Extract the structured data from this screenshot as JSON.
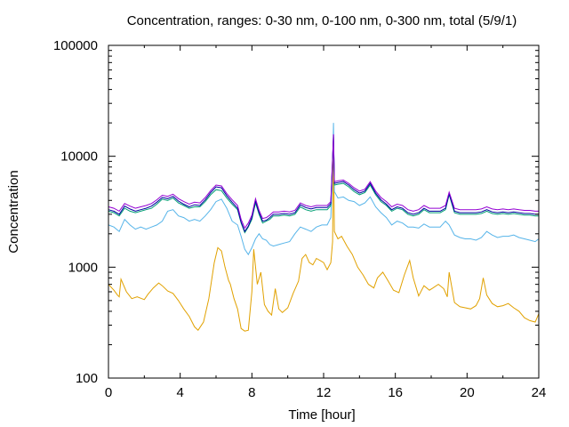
{
  "chart_data": {
    "type": "line",
    "title": "Concentration, ranges: 0-30 nm, 0-100 nm, 0-300 nm, total (5/9/1)",
    "xlabel": "Time [hour]",
    "ylabel": "Concentration",
    "x_scale": "linear",
    "y_scale": "log",
    "xlim": [
      0,
      24
    ],
    "ylim": [
      100,
      100000
    ],
    "x_ticks": [
      0,
      4,
      8,
      12,
      16,
      20,
      24
    ],
    "y_ticks": [
      100,
      1000,
      10000,
      100000
    ],
    "x_tick_labels": [
      "0",
      "4",
      "8",
      "12",
      "16",
      "20",
      "24"
    ],
    "y_tick_labels": [
      "100",
      "1000",
      "10000",
      "100000"
    ],
    "grid": false,
    "legend": false,
    "series": [
      {
        "color": "#e1a100",
        "x": [
          0.0,
          0.3,
          0.5,
          0.6,
          0.7,
          1.0,
          1.3,
          1.6,
          2.0,
          2.2,
          2.5,
          2.8,
          3.0,
          3.3,
          3.6,
          3.9,
          4.2,
          4.5,
          4.8,
          5.0,
          5.3,
          5.6,
          5.9,
          6.1,
          6.3,
          6.5,
          6.7,
          6.8,
          7.0,
          7.2,
          7.4,
          7.6,
          7.8,
          8.0,
          8.1,
          8.3,
          8.5,
          8.7,
          8.9,
          9.1,
          9.3,
          9.5,
          9.7,
          10.0,
          10.3,
          10.6,
          10.8,
          11.0,
          11.2,
          11.4,
          11.6,
          11.8,
          12.0,
          12.2,
          12.4,
          12.5,
          12.55,
          12.6,
          12.8,
          13.0,
          13.3,
          13.6,
          13.9,
          14.2,
          14.5,
          14.8,
          15.0,
          15.3,
          15.6,
          15.9,
          16.2,
          16.5,
          16.8,
          17.0,
          17.3,
          17.6,
          17.9,
          18.1,
          18.4,
          18.7,
          18.9,
          19.0,
          19.3,
          19.6,
          19.9,
          20.2,
          20.5,
          20.7,
          20.9,
          21.1,
          21.4,
          21.7,
          22.0,
          22.3,
          22.6,
          22.9,
          23.2,
          23.5,
          23.8,
          24.0
        ],
        "y": [
          700,
          620,
          560,
          540,
          780,
          600,
          520,
          540,
          510,
          570,
          650,
          720,
          680,
          610,
          580,
          500,
          420,
          360,
          290,
          270,
          320,
          520,
          1100,
          1500,
          1400,
          1000,
          760,
          700,
          520,
          420,
          280,
          265,
          270,
          600,
          1450,
          700,
          900,
          460,
          400,
          370,
          640,
          420,
          390,
          430,
          580,
          750,
          1200,
          1300,
          1100,
          1050,
          1200,
          1150,
          1100,
          950,
          1100,
          1700,
          15000,
          2100,
          1800,
          1900,
          1550,
          1300,
          1000,
          850,
          700,
          650,
          800,
          900,
          750,
          620,
          590,
          850,
          1150,
          800,
          550,
          680,
          620,
          650,
          700,
          640,
          540,
          900,
          480,
          440,
          430,
          420,
          450,
          520,
          800,
          560,
          470,
          440,
          450,
          470,
          430,
          400,
          350,
          330,
          320,
          380
        ]
      },
      {
        "color": "#56b4e9",
        "x": [
          0.0,
          0.3,
          0.6,
          0.9,
          1.2,
          1.5,
          1.8,
          2.1,
          2.4,
          2.7,
          3.0,
          3.3,
          3.6,
          3.9,
          4.2,
          4.5,
          4.8,
          5.1,
          5.4,
          5.7,
          6.0,
          6.3,
          6.6,
          6.9,
          7.2,
          7.4,
          7.6,
          7.8,
          8.0,
          8.2,
          8.4,
          8.6,
          8.8,
          9.0,
          9.2,
          9.5,
          9.8,
          10.1,
          10.4,
          10.7,
          11.0,
          11.3,
          11.6,
          11.9,
          12.2,
          12.4,
          12.5,
          12.55,
          12.6,
          12.8,
          13.1,
          13.4,
          13.7,
          14.0,
          14.3,
          14.6,
          14.9,
          15.2,
          15.5,
          15.8,
          16.1,
          16.4,
          16.7,
          17.0,
          17.3,
          17.6,
          17.9,
          18.2,
          18.5,
          18.8,
          19.0,
          19.3,
          19.6,
          19.9,
          20.2,
          20.5,
          20.8,
          21.1,
          21.4,
          21.7,
          22.0,
          22.3,
          22.6,
          22.9,
          23.2,
          23.5,
          23.8,
          24.0
        ],
        "y": [
          2400,
          2300,
          2100,
          2700,
          2400,
          2200,
          2300,
          2200,
          2300,
          2400,
          2600,
          3200,
          3300,
          2900,
          2800,
          2600,
          2700,
          2600,
          2900,
          3300,
          3900,
          4100,
          3400,
          2600,
          2400,
          1900,
          1450,
          1300,
          1500,
          1800,
          2000,
          1800,
          1750,
          1600,
          1550,
          1600,
          1650,
          1700,
          2000,
          2300,
          2200,
          2100,
          2300,
          2400,
          2400,
          2800,
          8000,
          20000,
          4800,
          4200,
          4300,
          4000,
          3900,
          3600,
          3800,
          4300,
          3500,
          3100,
          2800,
          2400,
          2600,
          2500,
          2300,
          2300,
          2250,
          2450,
          2300,
          2300,
          2300,
          2600,
          2400,
          1950,
          1850,
          1800,
          1800,
          1750,
          1850,
          2100,
          1950,
          1850,
          1900,
          1900,
          1950,
          1850,
          1800,
          1750,
          1700,
          1800
        ]
      },
      {
        "color": "#009e73",
        "x": [
          0.0,
          0.3,
          0.6,
          0.9,
          1.2,
          1.5,
          1.8,
          2.1,
          2.4,
          2.7,
          3.0,
          3.3,
          3.6,
          3.9,
          4.2,
          4.5,
          4.8,
          5.1,
          5.4,
          5.7,
          6.0,
          6.3,
          6.6,
          6.9,
          7.2,
          7.4,
          7.6,
          7.8,
          8.0,
          8.2,
          8.4,
          8.6,
          8.8,
          9.0,
          9.2,
          9.5,
          9.8,
          10.1,
          10.4,
          10.7,
          11.0,
          11.3,
          11.6,
          11.9,
          12.2,
          12.4,
          12.5,
          12.55,
          12.6,
          12.8,
          13.1,
          13.4,
          13.7,
          14.0,
          14.3,
          14.6,
          14.9,
          15.2,
          15.5,
          15.8,
          16.1,
          16.4,
          16.7,
          17.0,
          17.3,
          17.6,
          17.9,
          18.2,
          18.5,
          18.8,
          19.0,
          19.3,
          19.6,
          19.9,
          20.2,
          20.5,
          20.8,
          21.1,
          21.4,
          21.7,
          22.0,
          22.3,
          22.6,
          22.9,
          23.2,
          23.5,
          23.8,
          24.0
        ],
        "y": [
          3200,
          3100,
          2900,
          3400,
          3200,
          3100,
          3200,
          3300,
          3400,
          3700,
          4100,
          4000,
          4200,
          3800,
          3600,
          3400,
          3500,
          3500,
          3900,
          4500,
          5000,
          4900,
          4200,
          3700,
          3300,
          2500,
          2050,
          2300,
          2700,
          3800,
          3000,
          2500,
          2600,
          2700,
          2900,
          2900,
          2950,
          2900,
          3000,
          3500,
          3300,
          3200,
          3300,
          3300,
          3300,
          3600,
          9000,
          15000,
          5500,
          5600,
          5700,
          5300,
          4800,
          4500,
          4700,
          5500,
          4500,
          3900,
          3600,
          3200,
          3400,
          3300,
          3000,
          2900,
          3000,
          3300,
          3100,
          3100,
          3100,
          3300,
          4500,
          3100,
          3000,
          3000,
          3000,
          3000,
          3050,
          3200,
          3050,
          3000,
          3050,
          3000,
          3050,
          3000,
          2950,
          2950,
          2900,
          2900
        ]
      },
      {
        "color": "#0000a0",
        "x": [
          0.0,
          0.3,
          0.6,
          0.9,
          1.2,
          1.5,
          1.8,
          2.1,
          2.4,
          2.7,
          3.0,
          3.3,
          3.6,
          3.9,
          4.2,
          4.5,
          4.8,
          5.1,
          5.4,
          5.7,
          6.0,
          6.3,
          6.6,
          6.9,
          7.2,
          7.4,
          7.6,
          7.8,
          8.0,
          8.2,
          8.4,
          8.6,
          8.8,
          9.0,
          9.2,
          9.5,
          9.8,
          10.1,
          10.4,
          10.7,
          11.0,
          11.3,
          11.6,
          11.9,
          12.2,
          12.4,
          12.5,
          12.55,
          12.6,
          12.8,
          13.1,
          13.4,
          13.7,
          14.0,
          14.3,
          14.6,
          14.9,
          15.2,
          15.5,
          15.8,
          16.1,
          16.4,
          16.7,
          17.0,
          17.3,
          17.6,
          17.9,
          18.2,
          18.5,
          18.8,
          19.0,
          19.3,
          19.6,
          19.9,
          20.2,
          20.5,
          20.8,
          21.1,
          21.4,
          21.7,
          22.0,
          22.3,
          22.6,
          22.9,
          23.2,
          23.5,
          23.8,
          24.0
        ],
        "y": [
          3300,
          3200,
          3000,
          3550,
          3350,
          3200,
          3300,
          3400,
          3550,
          3850,
          4250,
          4150,
          4350,
          3950,
          3700,
          3500,
          3650,
          3600,
          4050,
          4700,
          5300,
          5200,
          4400,
          3850,
          3400,
          2550,
          2100,
          2350,
          2800,
          3950,
          3100,
          2600,
          2650,
          2800,
          3000,
          3000,
          3050,
          3000,
          3100,
          3650,
          3450,
          3350,
          3450,
          3450,
          3450,
          3750,
          9500,
          15500,
          5700,
          5800,
          5900,
          5500,
          5000,
          4650,
          4850,
          5700,
          4650,
          4050,
          3700,
          3300,
          3500,
          3400,
          3100,
          3000,
          3100,
          3400,
          3200,
          3200,
          3200,
          3400,
          4600,
          3200,
          3100,
          3100,
          3100,
          3100,
          3150,
          3300,
          3150,
          3100,
          3150,
          3100,
          3150,
          3100,
          3050,
          3050,
          3000,
          3000
        ]
      },
      {
        "color": "#9400d3",
        "x": [
          0.0,
          0.3,
          0.6,
          0.9,
          1.2,
          1.5,
          1.8,
          2.1,
          2.4,
          2.7,
          3.0,
          3.3,
          3.6,
          3.9,
          4.2,
          4.5,
          4.8,
          5.1,
          5.4,
          5.7,
          6.0,
          6.3,
          6.6,
          6.9,
          7.2,
          7.4,
          7.6,
          7.8,
          8.0,
          8.2,
          8.4,
          8.6,
          8.8,
          9.0,
          9.2,
          9.5,
          9.8,
          10.1,
          10.4,
          10.7,
          11.0,
          11.3,
          11.6,
          11.9,
          12.2,
          12.4,
          12.5,
          12.55,
          12.6,
          12.8,
          13.1,
          13.4,
          13.7,
          14.0,
          14.3,
          14.6,
          14.9,
          15.2,
          15.5,
          15.8,
          16.1,
          16.4,
          16.7,
          17.0,
          17.3,
          17.6,
          17.9,
          18.2,
          18.5,
          18.8,
          19.0,
          19.3,
          19.6,
          19.9,
          20.2,
          20.5,
          20.8,
          21.1,
          21.4,
          21.7,
          22.0,
          22.3,
          22.6,
          22.9,
          23.2,
          23.5,
          23.8,
          24.0
        ],
        "y": [
          3500,
          3400,
          3200,
          3750,
          3550,
          3400,
          3500,
          3600,
          3750,
          4050,
          4450,
          4350,
          4550,
          4150,
          3900,
          3700,
          3850,
          3800,
          4250,
          4900,
          5500,
          5400,
          4600,
          4050,
          3600,
          2700,
          2250,
          2500,
          2950,
          4150,
          3250,
          2750,
          2800,
          2950,
          3150,
          3150,
          3200,
          3150,
          3250,
          3800,
          3600,
          3500,
          3600,
          3600,
          3600,
          3900,
          9800,
          15800,
          5900,
          6000,
          6100,
          5700,
          5200,
          4850,
          5050,
          5900,
          4850,
          4250,
          3900,
          3500,
          3700,
          3600,
          3300,
          3200,
          3300,
          3600,
          3400,
          3400,
          3400,
          3600,
          4750,
          3400,
          3300,
          3300,
          3300,
          3300,
          3350,
          3500,
          3350,
          3300,
          3350,
          3300,
          3350,
          3300,
          3250,
          3250,
          3200,
          3200
        ]
      }
    ]
  }
}
